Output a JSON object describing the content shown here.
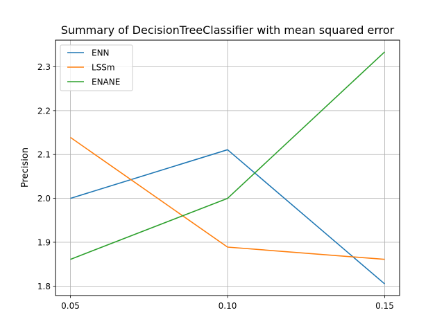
{
  "chart_data": {
    "type": "line",
    "title": "Summary of DecisionTreeClassifier with mean squared error",
    "xlabel": "",
    "ylabel": "Precision",
    "x": [
      0.05,
      0.1,
      0.15
    ],
    "x_tick_labels": [
      "0.05",
      "0.10",
      "0.15"
    ],
    "y_ticks": [
      1.8,
      1.9,
      2.0,
      2.1,
      2.2,
      2.3
    ],
    "y_tick_labels": [
      "1.8",
      "1.9",
      "2.0",
      "2.1",
      "2.2",
      "2.3"
    ],
    "xlim": [
      0.04525,
      0.15475
    ],
    "ylim": [
      1.7785,
      2.3607
    ],
    "grid": true,
    "legend_position": "upper-left",
    "series": [
      {
        "name": "ENN",
        "values": [
          2.0,
          2.111,
          1.805
        ],
        "color": "#1f77b4"
      },
      {
        "name": "LSSm",
        "values": [
          2.139,
          1.889,
          1.861
        ],
        "color": "#ff7f0e"
      },
      {
        "name": "ENANE",
        "values": [
          1.861,
          2.0,
          2.334
        ],
        "color": "#2ca02c"
      }
    ]
  }
}
